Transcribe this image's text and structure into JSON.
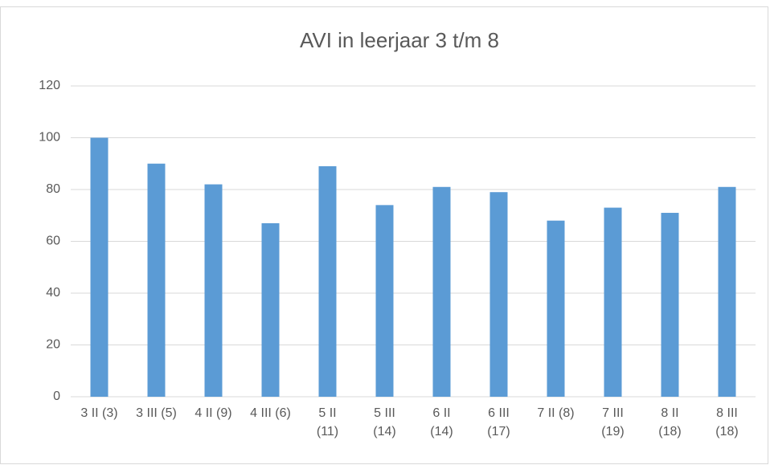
{
  "chart_data": {
    "type": "bar",
    "title": "AVI in leerjaar 3 t/m 8",
    "categories": [
      "3 II (3)",
      "3 III (5)",
      "4 II (9)",
      "4 III (6)",
      "5 II\n(11)",
      "5 III\n(14)",
      "6 II\n(14)",
      "6 III\n(17)",
      "7 II (8)",
      "7 III\n(19)",
      "8 II\n(18)",
      "8 III\n(18)"
    ],
    "values": [
      100,
      90,
      82,
      67,
      89,
      74,
      81,
      79,
      68,
      73,
      71,
      81
    ],
    "color": "#5b9bd5",
    "ylim": [
      0,
      120
    ],
    "yticks": [
      0,
      20,
      40,
      60,
      80,
      100,
      120
    ],
    "grid": true
  }
}
